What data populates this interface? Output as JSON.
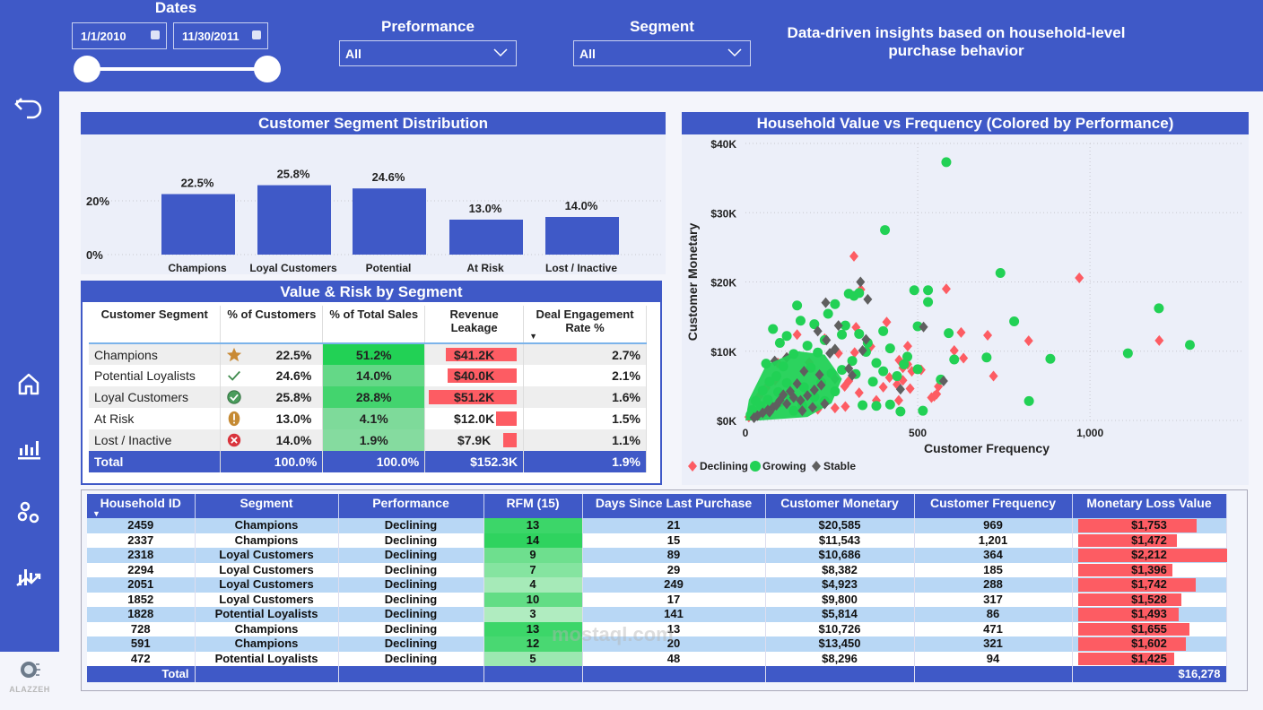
{
  "filters": {
    "dates": {
      "title": "Dates",
      "start": "1/1/2010",
      "end": "11/30/2011",
      "range_fraction": [
        0,
        1
      ]
    },
    "performance": {
      "title": "Preformance",
      "value": "All"
    },
    "segment": {
      "title": "Segment",
      "value": "All"
    },
    "tagline": "Data-driven insights based on household-level purchase behavior"
  },
  "sidebar": {
    "items": [
      {
        "name": "back",
        "icon": "back-arrow-icon"
      },
      {
        "name": "home",
        "icon": "home-icon"
      },
      {
        "name": "overview",
        "icon": "bar-chart-icon"
      },
      {
        "name": "segments",
        "icon": "clusters-icon"
      },
      {
        "name": "trends",
        "icon": "trend-chart-icon"
      }
    ],
    "logo_text": "ALAZZEH"
  },
  "colors": {
    "brand": "#3f59c7",
    "declining": "#fd5c63",
    "growing": "#22d155",
    "stable": "#5f5f5f"
  },
  "chart_data": [
    {
      "type": "bar",
      "title": "Customer Segment Distribution",
      "categories": [
        "Champions",
        "Loyal Customers",
        "Potential Loyalists",
        "At Risk",
        "Lost / Inactive"
      ],
      "values": [
        22.5,
        25.8,
        24.6,
        13.0,
        14.0
      ],
      "labels": [
        "22.5%",
        "25.8%",
        "24.6%",
        "13.0%",
        "14.0%"
      ],
      "yticks": [
        "0%",
        "20%"
      ],
      "ylim": [
        0,
        30
      ],
      "grid": true
    },
    {
      "type": "scatter",
      "title": "Household Value vs Frequency (Colored by Performance)",
      "xlabel": "Customer Frequency",
      "ylabel": "Customer Monetary",
      "xlim": [
        0,
        1400
      ],
      "ylim": [
        0,
        40000
      ],
      "xticks": [
        {
          "v": 0,
          "t": "0"
        },
        {
          "v": 500,
          "t": "500"
        },
        {
          "v": 1000,
          "t": "1,000"
        }
      ],
      "yticks": [
        {
          "v": 0,
          "t": "$0K"
        },
        {
          "v": 10000,
          "t": "$10K"
        },
        {
          "v": 20000,
          "t": "$20K"
        },
        {
          "v": 30000,
          "t": "$30K"
        },
        {
          "v": 40000,
          "t": "$40K"
        }
      ],
      "legend": {
        "placement": "bottom-left",
        "entries": [
          "Declining",
          "Growing",
          "Stable"
        ]
      },
      "series": [
        {
          "name": "Declining",
          "marker": "diamond",
          "points": [
            [
              315,
              23700
            ],
            [
              969,
              20585
            ],
            [
              583,
              19000
            ],
            [
              335,
              18900
            ],
            [
              1201,
              11543
            ],
            [
              364,
              10686
            ],
            [
              626,
              12700
            ],
            [
              703,
              12300
            ],
            [
              822,
              11500
            ],
            [
              410,
              14200
            ],
            [
              606,
              10100
            ],
            [
              633,
              9000
            ],
            [
              471,
              8100
            ],
            [
              457,
              7600
            ],
            [
              446,
              8700
            ],
            [
              418,
              6200
            ],
            [
              510,
              7300
            ],
            [
              483,
              7100
            ],
            [
              457,
              5800
            ],
            [
              440,
              5200
            ],
            [
              400,
              4800
            ],
            [
              478,
              4600
            ],
            [
              560,
              4900
            ],
            [
              555,
              3800
            ],
            [
              548,
              3500
            ],
            [
              540,
              3300
            ],
            [
              445,
              2900
            ],
            [
              380,
              2900
            ],
            [
              290,
              2000
            ],
            [
              260,
              1800
            ],
            [
              210,
              1600
            ],
            [
              720,
              6400
            ],
            [
              330,
              4000
            ],
            [
              300,
              5700
            ],
            [
              185,
              8382
            ],
            [
              288,
              4923
            ],
            [
              317,
              9800
            ],
            [
              86,
              5814
            ],
            [
              471,
              10726
            ],
            [
              321,
              13450
            ],
            [
              94,
              8296
            ],
            [
              150,
              12400
            ],
            [
              270,
              9700
            ],
            [
              230,
              11800
            ],
            [
              120,
              9100
            ],
            [
              60,
              4700
            ],
            [
              40,
              3500
            ],
            [
              25,
              1200
            ],
            [
              10,
              500
            ]
          ]
        },
        {
          "name": "Growing",
          "marker": "circle",
          "points": [
            [
              583,
              37300
            ],
            [
              405,
              27500
            ],
            [
              740,
              21300
            ],
            [
              1200,
              16200
            ],
            [
              1290,
              10900
            ],
            [
              1110,
              9700
            ],
            [
              885,
              8900
            ],
            [
              700,
              9100
            ],
            [
              780,
              14300
            ],
            [
              590,
              12600
            ],
            [
              606,
              8800
            ],
            [
              823,
              2800
            ],
            [
              567,
              5900
            ],
            [
              515,
              1400
            ],
            [
              450,
              1300
            ],
            [
              420,
              2300
            ],
            [
              380,
              2100
            ],
            [
              340,
              2200
            ],
            [
              330,
              18400
            ],
            [
              315,
              18000
            ],
            [
              300,
              18300
            ],
            [
              490,
              18800
            ],
            [
              530,
              18800
            ],
            [
              530,
              17100
            ],
            [
              500,
              13600
            ],
            [
              470,
              9200
            ],
            [
              460,
              8100
            ],
            [
              500,
              7400
            ],
            [
              440,
              6400
            ],
            [
              400,
              7100
            ],
            [
              370,
              5600
            ],
            [
              330,
              12500
            ],
            [
              290,
              13700
            ],
            [
              280,
              12400
            ],
            [
              240,
              15400
            ],
            [
              200,
              13900
            ],
            [
              160,
              14400
            ],
            [
              150,
              16600
            ],
            [
              120,
              12200
            ],
            [
              100,
              11200
            ],
            [
              80,
              13200
            ],
            [
              60,
              8200
            ],
            [
              260,
              16800
            ],
            [
              230,
              11600
            ],
            [
              210,
              9800
            ],
            [
              180,
              10800
            ],
            [
              140,
              9600
            ],
            [
              110,
              7800
            ],
            [
              90,
              6400
            ],
            [
              70,
              5600
            ],
            [
              50,
              4300
            ],
            [
              30,
              2800
            ],
            [
              20,
              1500
            ],
            [
              15,
              800
            ],
            [
              250,
              6800
            ],
            [
              220,
              5500
            ],
            [
              190,
              7600
            ],
            [
              170,
              4800
            ],
            [
              130,
              3600
            ],
            [
              100,
              2600
            ],
            [
              75,
              1900
            ],
            [
              55,
              1200
            ],
            [
              280,
              7300
            ],
            [
              310,
              8600
            ],
            [
              260,
              4200
            ],
            [
              230,
              2800
            ],
            [
              200,
              3400
            ],
            [
              165,
              2200
            ],
            [
              140,
              1400
            ],
            [
              120,
              5400
            ],
            [
              95,
              4100
            ],
            [
              65,
              3000
            ],
            [
              45,
              2100
            ],
            [
              350,
              9900
            ],
            [
              320,
              6700
            ],
            [
              380,
              8300
            ],
            [
              355,
              11200
            ],
            [
              400,
              12900
            ],
            [
              420,
              10400
            ]
          ]
        },
        {
          "name": "Stable",
          "marker": "diamond",
          "points": [
            [
              334,
              20000
            ],
            [
              355,
              17500
            ],
            [
              233,
              17000
            ],
            [
              517,
              13500
            ],
            [
              270,
              13700
            ],
            [
              210,
              12900
            ],
            [
              350,
              11700
            ],
            [
              235,
              11600
            ],
            [
              340,
              10100
            ],
            [
              260,
              10300
            ],
            [
              245,
              9700
            ],
            [
              85,
              8600
            ],
            [
              120,
              9100
            ],
            [
              170,
              7100
            ],
            [
              215,
              6600
            ],
            [
              300,
              7500
            ],
            [
              310,
              6500
            ],
            [
              260,
              6000
            ],
            [
              575,
              5700
            ],
            [
              450,
              4500
            ],
            [
              220,
              5100
            ],
            [
              200,
              4400
            ],
            [
              180,
              3600
            ],
            [
              160,
              2900
            ],
            [
              140,
              3300
            ],
            [
              120,
              2400
            ],
            [
              100,
              2900
            ],
            [
              80,
              1900
            ],
            [
              65,
              1500
            ],
            [
              50,
              1100
            ],
            [
              35,
              700
            ],
            [
              25,
              400
            ],
            [
              150,
              5300
            ],
            [
              130,
              4200
            ],
            [
              110,
              3700
            ],
            [
              90,
              2200
            ],
            [
              70,
              1200
            ],
            [
              230,
              2400
            ],
            [
              195,
              1900
            ],
            [
              165,
              1400
            ]
          ]
        }
      ]
    }
  ],
  "risk_table": {
    "title": "Value & Risk by Segment",
    "columns": [
      "Customer Segment",
      "% of Customers",
      "% of Total Sales",
      "Revenue Leakage",
      "Deal Engagement Rate %"
    ],
    "sort_indicator_column": 4,
    "rows": [
      {
        "segment": "Champions",
        "icon": "star-icon",
        "pct_customers": "22.5%",
        "pct_sales": "51.2%",
        "sales_shade": 1.0,
        "leakage": "$41.2K",
        "leakage_value": 41.2,
        "engagement": "2.7%"
      },
      {
        "segment": "Potential Loyalists",
        "icon": "checkmark-icon",
        "pct_customers": "24.6%",
        "pct_sales": "14.0%",
        "sales_shade": 0.5,
        "leakage": "$40.0K",
        "leakage_value": 40.0,
        "engagement": "2.1%"
      },
      {
        "segment": "Loyal Customers",
        "icon": "check-circle-icon",
        "pct_customers": "25.8%",
        "pct_sales": "28.8%",
        "sales_shade": 0.75,
        "leakage": "$51.2K",
        "leakage_value": 51.2,
        "engagement": "1.6%"
      },
      {
        "segment": "At Risk",
        "icon": "warning-icon",
        "pct_customers": "13.0%",
        "pct_sales": "4.1%",
        "sales_shade": 0.3,
        "leakage": "$12.0K",
        "leakage_value": 12.0,
        "engagement": "1.5%"
      },
      {
        "segment": "Lost / Inactive",
        "icon": "error-x-icon",
        "pct_customers": "14.0%",
        "pct_sales": "1.9%",
        "sales_shade": 0.25,
        "leakage": "$7.9K",
        "leakage_value": 7.9,
        "engagement": "1.1%"
      }
    ],
    "total": {
      "label": "Total",
      "pct_customers": "100.0%",
      "pct_sales": "100.0%",
      "leakage": "$152.3K",
      "engagement": "1.9%"
    }
  },
  "detail_table": {
    "columns": [
      "Household ID",
      "Segment",
      "Performance",
      "RFM (15)",
      "Days Since Last Purchase",
      "Customer Monetary",
      "Customer Frequency",
      "Monetary Loss Value"
    ],
    "rows": [
      {
        "id": "2459",
        "segment": "Champions",
        "performance": "Declining",
        "rfm": 13,
        "days": "21",
        "monetary": "$20,585",
        "frequency": "969",
        "loss": "$1,753",
        "loss_value": 1753
      },
      {
        "id": "2337",
        "segment": "Champions",
        "performance": "Declining",
        "rfm": 14,
        "days": "15",
        "monetary": "$11,543",
        "frequency": "1,201",
        "loss": "$1,472",
        "loss_value": 1472
      },
      {
        "id": "2318",
        "segment": "Loyal Customers",
        "performance": "Declining",
        "rfm": 9,
        "days": "89",
        "monetary": "$10,686",
        "frequency": "364",
        "loss": "$2,212",
        "loss_value": 2212
      },
      {
        "id": "2294",
        "segment": "Loyal Customers",
        "performance": "Declining",
        "rfm": 7,
        "days": "29",
        "monetary": "$8,382",
        "frequency": "185",
        "loss": "$1,396",
        "loss_value": 1396
      },
      {
        "id": "2051",
        "segment": "Loyal Customers",
        "performance": "Declining",
        "rfm": 4,
        "days": "249",
        "monetary": "$4,923",
        "frequency": "288",
        "loss": "$1,742",
        "loss_value": 1742
      },
      {
        "id": "1852",
        "segment": "Loyal Customers",
        "performance": "Declining",
        "rfm": 10,
        "days": "17",
        "monetary": "$9,800",
        "frequency": "317",
        "loss": "$1,528",
        "loss_value": 1528
      },
      {
        "id": "1828",
        "segment": "Potential Loyalists",
        "performance": "Declining",
        "rfm": 3,
        "days": "141",
        "monetary": "$5,814",
        "frequency": "86",
        "loss": "$1,493",
        "loss_value": 1493
      },
      {
        "id": "728",
        "segment": "Champions",
        "performance": "Declining",
        "rfm": 13,
        "days": "13",
        "monetary": "$10,726",
        "frequency": "471",
        "loss": "$1,655",
        "loss_value": 1655
      },
      {
        "id": "591",
        "segment": "Champions",
        "performance": "Declining",
        "rfm": 12,
        "days": "20",
        "monetary": "$13,450",
        "frequency": "321",
        "loss": "$1,602",
        "loss_value": 1602
      },
      {
        "id": "472",
        "segment": "Potential Loyalists",
        "performance": "Declining",
        "rfm": 5,
        "days": "48",
        "monetary": "$8,296",
        "frequency": "94",
        "loss": "$1,425",
        "loss_value": 1425
      }
    ],
    "total": {
      "label": "Total",
      "loss": "$16,278"
    }
  },
  "watermark": "mostaql.com"
}
